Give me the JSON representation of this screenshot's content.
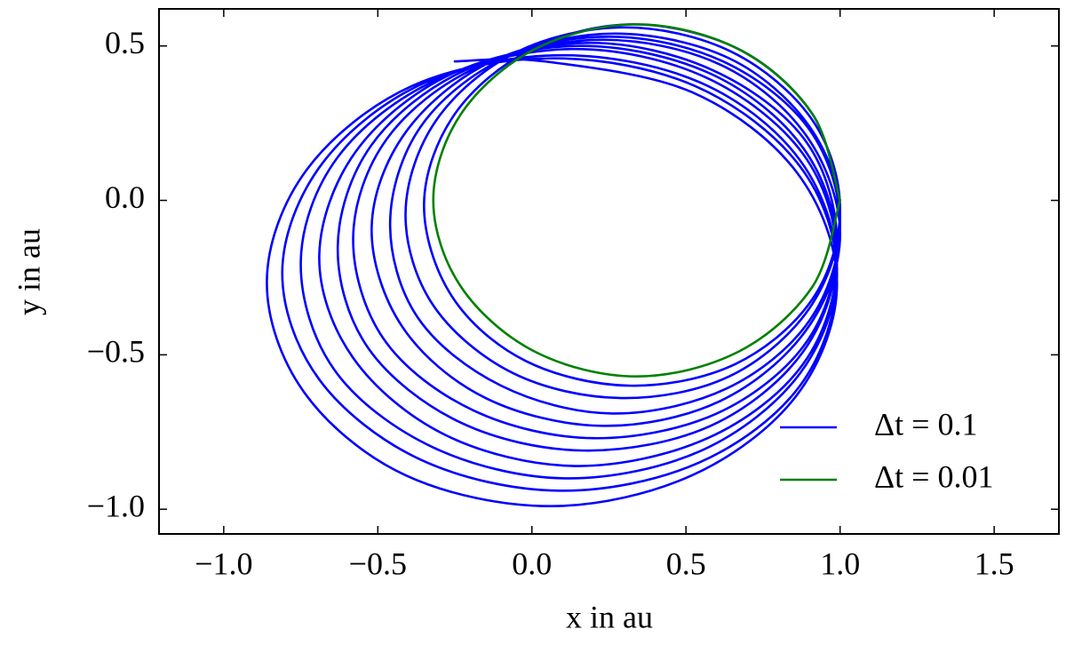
{
  "chart_data": {
    "type": "line",
    "x_label": "x in au",
    "y_label": "y in au",
    "xlim": [
      -1.21,
      1.71
    ],
    "ylim": [
      -1.08,
      0.62
    ],
    "xticks": [
      {
        "value": -1.0,
        "label": "−1.0"
      },
      {
        "value": -0.5,
        "label": "−0.5"
      },
      {
        "value": 0,
        "label": "0.0"
      },
      0.5,
      {
        "value": 1.0,
        "label": "1.0"
      },
      1.5
    ],
    "yticks": [
      {
        "value": -1.0,
        "label": "−1.0"
      },
      {
        "value": -0.5,
        "label": "−0.5"
      },
      {
        "value": 0,
        "label": "0.0"
      },
      0.5
    ],
    "legend_position": "lower right",
    "series": [
      {
        "name": "Δt = 0.1",
        "color": "#0000ff",
        "x": [
          1.0,
          0.91,
          0.67,
          0.33,
          0.0,
          -0.25,
          -0.35,
          -0.26,
          -0.02,
          0.32,
          0.66,
          0.91,
          1.0,
          0.91,
          0.65,
          0.3,
          -0.05,
          -0.31,
          -0.41,
          -0.32,
          -0.06,
          0.29,
          0.64,
          0.9,
          1.0,
          0.9,
          0.64,
          0.27,
          -0.09,
          -0.36,
          -0.46,
          -0.37,
          -0.1,
          0.26,
          0.63,
          0.9,
          1.0,
          0.9,
          0.62,
          0.25,
          -0.13,
          -0.41,
          -0.52,
          -0.42,
          -0.15,
          0.23,
          0.61,
          0.89,
          1.0,
          0.89,
          0.61,
          0.22,
          -0.18,
          -0.47,
          -0.58,
          -0.48,
          -0.19,
          0.2,
          0.6,
          0.89,
          0.99,
          0.89,
          0.59,
          0.19,
          -0.22,
          -0.52,
          -0.63,
          -0.53,
          -0.23,
          0.17,
          0.58,
          0.88,
          0.99,
          0.88,
          0.58,
          0.16,
          -0.26,
          -0.57,
          -0.69,
          -0.58,
          -0.28,
          0.14,
          0.57,
          0.88,
          0.99,
          0.88,
          0.56,
          0.13,
          -0.31,
          -0.63,
          -0.75,
          -0.64,
          -0.32,
          0.11,
          0.55,
          0.87,
          0.99,
          0.87,
          0.55,
          0.1,
          -0.35,
          -0.68,
          -0.81,
          -0.69,
          -0.36,
          0.09,
          0.54,
          0.87,
          0.99,
          0.87,
          0.53,
          0.07,
          -0.39,
          -0.73,
          -0.86,
          -0.74,
          -0.41,
          0.06,
          0.52,
          0.86,
          0.99,
          0.86,
          0.52,
          0.04,
          -0.25
        ],
        "y": [
          0.0,
          0.28,
          0.49,
          0.57,
          0.49,
          0.28,
          -0.01,
          -0.31,
          -0.52,
          -0.6,
          -0.53,
          -0.32,
          -0.03,
          0.26,
          0.48,
          0.56,
          0.48,
          0.26,
          -0.04,
          -0.34,
          -0.56,
          -0.64,
          -0.57,
          -0.35,
          -0.05,
          0.24,
          0.46,
          0.54,
          0.46,
          0.24,
          -0.07,
          -0.38,
          -0.6,
          -0.69,
          -0.61,
          -0.39,
          -0.08,
          0.23,
          0.45,
          0.53,
          0.45,
          0.22,
          -0.09,
          -0.41,
          -0.64,
          -0.73,
          -0.65,
          -0.42,
          -0.11,
          0.21,
          0.44,
          0.52,
          0.43,
          0.2,
          -0.12,
          -0.45,
          -0.68,
          -0.77,
          -0.69,
          -0.46,
          -0.14,
          0.19,
          0.42,
          0.51,
          0.42,
          0.18,
          -0.15,
          -0.48,
          -0.72,
          -0.81,
          -0.73,
          -0.49,
          -0.16,
          0.17,
          0.41,
          0.5,
          0.41,
          0.16,
          -0.18,
          -0.51,
          -0.76,
          -0.86,
          -0.77,
          -0.53,
          -0.19,
          0.15,
          0.4,
          0.49,
          0.39,
          0.14,
          -0.2,
          -0.55,
          -0.8,
          -0.9,
          -0.81,
          -0.56,
          -0.22,
          0.13,
          0.38,
          0.47,
          0.38,
          0.12,
          -0.23,
          -0.58,
          -0.84,
          -0.94,
          -0.85,
          -0.6,
          -0.24,
          0.11,
          0.37,
          0.46,
          0.37,
          0.1,
          -0.26,
          -0.62,
          -0.89,
          -0.99,
          -0.89,
          -0.63,
          -0.27,
          0.09,
          0.35,
          0.45,
          0.45
        ]
      },
      {
        "name": "Δt = 0.01",
        "color": "#008000",
        "x": [
          1.0,
          0.91,
          0.67,
          0.34,
          0.01,
          -0.23,
          -0.32,
          -0.23,
          0.01,
          0.34,
          0.67,
          0.91,
          1.0
        ],
        "y": [
          0.0,
          0.28,
          0.49,
          0.57,
          0.49,
          0.28,
          0.0,
          -0.28,
          -0.49,
          -0.57,
          -0.49,
          -0.28,
          0.0
        ]
      }
    ]
  }
}
